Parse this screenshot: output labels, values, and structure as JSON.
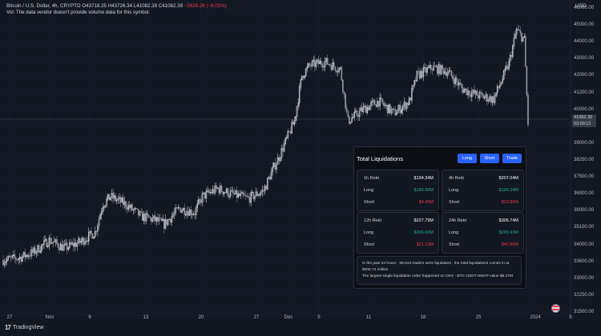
{
  "header": {
    "symbol": "Bitcoin / U.S. Dollar, 4h, CRYPTO",
    "open_label": "O",
    "open": "43718.25",
    "high_label": "H",
    "high": "43726.34",
    "low_label": "L",
    "low": "41082.39",
    "close_label": "C",
    "close": "41082.39",
    "change": "−2626.28 (−6.01%)",
    "vol_note": "Vol: The data vendor doesn't provide volume data for this symbol."
  },
  "axis": {
    "currency": "USD",
    "price_ticks": [
      "46000.00",
      "45000.00",
      "44000.00",
      "43000.00",
      "42000.00",
      "41200.00",
      "40000.00",
      "39600.00",
      "39000.00",
      "38250.00",
      "37500.00",
      "36900.00",
      "36000.00",
      "35100.00",
      "34000.00",
      "33600.00",
      "33000.00",
      "32250.00",
      "31500.00"
    ],
    "current_price": "41082.39",
    "current_time": "03:00:12",
    "date_ticks": [
      "27",
      "Nov",
      "6",
      "13",
      "20",
      "27",
      "Dec",
      "5",
      "11",
      "18",
      "25",
      "2024",
      "8"
    ]
  },
  "colors": {
    "up": "#089981",
    "down": "#f23645",
    "candle": "#e0e3eb",
    "bg": "#131722",
    "accent": "#2962ff"
  },
  "chart_data": {
    "type": "candlestick",
    "x_range": [
      "2023-10-27",
      "2024-01-08"
    ],
    "ylim": [
      31500,
      46500
    ],
    "close_path": [
      [
        "2023-10-27",
        34200
      ],
      [
        "2023-10-29",
        34300
      ],
      [
        "2023-10-31",
        34600
      ],
      [
        "2023-11-02",
        35200
      ],
      [
        "2023-11-04",
        34800
      ],
      [
        "2023-11-06",
        35100
      ],
      [
        "2023-11-08",
        35600
      ],
      [
        "2023-11-09",
        37000
      ],
      [
        "2023-11-10",
        37400
      ],
      [
        "2023-11-12",
        37000
      ],
      [
        "2023-11-14",
        36400
      ],
      [
        "2023-11-16",
        36200
      ],
      [
        "2023-11-17",
        36000
      ],
      [
        "2023-11-19",
        36800
      ],
      [
        "2023-11-21",
        36600
      ],
      [
        "2023-11-22",
        37400
      ],
      [
        "2023-11-24",
        37800
      ],
      [
        "2023-11-26",
        37500
      ],
      [
        "2023-11-28",
        37300
      ],
      [
        "2023-11-30",
        37700
      ],
      [
        "2023-12-01",
        38600
      ],
      [
        "2023-12-02",
        39400
      ],
      [
        "2023-12-04",
        41200
      ],
      [
        "2023-12-05",
        43500
      ],
      [
        "2023-12-06",
        44000
      ],
      [
        "2023-12-08",
        44200
      ],
      [
        "2023-12-10",
        43800
      ],
      [
        "2023-12-11",
        41200
      ],
      [
        "2023-12-13",
        41800
      ],
      [
        "2023-12-15",
        42200
      ],
      [
        "2023-12-17",
        41600
      ],
      [
        "2023-12-19",
        42200
      ],
      [
        "2023-12-20",
        43500
      ],
      [
        "2023-12-22",
        43900
      ],
      [
        "2023-12-24",
        43700
      ],
      [
        "2023-12-26",
        42800
      ],
      [
        "2023-12-28",
        42500
      ],
      [
        "2023-12-30",
        42300
      ],
      [
        "2024-01-01",
        44100
      ],
      [
        "2024-01-02",
        45800
      ],
      [
        "2024-01-03",
        45300
      ],
      [
        "2024-01-03T12",
        41082
      ]
    ]
  },
  "tv_brand": "TradingView",
  "liquidations": {
    "title": "Total Liquidations",
    "buttons": [
      "Long",
      "Short",
      "Trade"
    ],
    "cards": [
      {
        "head_label": "1h Rekt",
        "head_value": "$194.34M",
        "long_label": "Long",
        "long_value": "$189.90M",
        "short_label": "Short",
        "short_value": "$4.45M"
      },
      {
        "head_label": "4h Rekt",
        "head_value": "$207.04M",
        "long_label": "Long",
        "long_value": "$194.24M",
        "short_label": "Short",
        "short_value": "$12.80M"
      },
      {
        "head_label": "12h Rekt",
        "head_value": "$227.79M",
        "long_label": "Long",
        "long_value": "$206.66M",
        "short_label": "Short",
        "short_value": "$21.13M"
      },
      {
        "head_label": "24h Rekt",
        "head_value": "$306.74M",
        "long_label": "Long",
        "long_value": "$265.93M",
        "short_label": "Short",
        "short_value": "$40.80M"
      }
    ],
    "note_line1": "In the past 24 hours , 98,613 traders were liquidated , the total liquidations comes in at",
    "note_line2": "$306.74 million",
    "note_line3": "The largest single liquidation order happened on OKX - BTC-USDT-SWAP value $6.27M"
  }
}
